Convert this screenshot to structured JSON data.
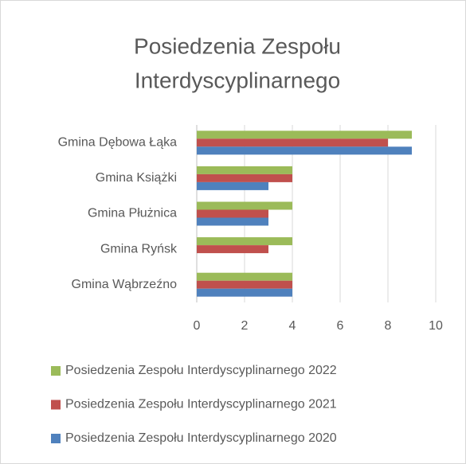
{
  "chart_data": {
    "type": "bar",
    "orientation": "horizontal",
    "title_lines": [
      "Posiedzenia Zespołu",
      "Interdyscyplinarnego"
    ],
    "categories": [
      "Gmina Dębowa Łąka",
      "Gmina Książki",
      "Gmina Płużnica",
      "Gmina Ryńsk",
      "Gmina Wąbrzeźno"
    ],
    "series": [
      {
        "name": "Posiedzenia Zespołu Interdyscyplinarnego 2022",
        "color": "#9bbb59",
        "values": [
          9,
          4,
          4,
          4,
          4
        ]
      },
      {
        "name": "Posiedzenia Zespołu Interdyscyplinarnego 2021",
        "color": "#c0504d",
        "values": [
          8,
          4,
          3,
          3,
          4
        ]
      },
      {
        "name": "Posiedzenia Zespołu Interdyscyplinarnego 2020",
        "color": "#4f81bd",
        "values": [
          9,
          3,
          3,
          null,
          4
        ]
      }
    ],
    "xlim": [
      0,
      10
    ],
    "xticks": [
      0,
      2,
      4,
      6,
      8,
      10
    ],
    "grid": true,
    "legend": "bottom"
  }
}
